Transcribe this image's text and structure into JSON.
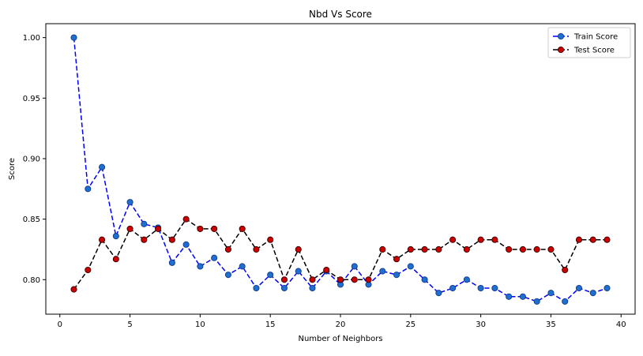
{
  "chart_data": {
    "type": "line",
    "title": "Nbd Vs Score",
    "xlabel": "Number of Neighbors",
    "ylabel": "Score",
    "xlim": [
      -1,
      41
    ],
    "ylim": [
      0.7715,
      1.0115
    ],
    "xticks": [
      0,
      5,
      10,
      15,
      20,
      25,
      30,
      35,
      40
    ],
    "yticks": [
      0.8,
      0.85,
      0.9,
      0.95,
      1.0
    ],
    "xtick_labels": [
      "0",
      "5",
      "10",
      "15",
      "20",
      "25",
      "30",
      "35",
      "40"
    ],
    "ytick_labels": [
      "0.80",
      "0.85",
      "0.90",
      "0.95",
      "1.00"
    ],
    "grid": false,
    "legend_position": "top-right",
    "x": [
      1,
      2,
      3,
      4,
      5,
      6,
      7,
      8,
      9,
      10,
      11,
      12,
      13,
      14,
      15,
      16,
      17,
      18,
      19,
      20,
      21,
      22,
      23,
      24,
      25,
      26,
      27,
      28,
      29,
      30,
      31,
      32,
      33,
      34,
      35,
      36,
      37,
      38,
      39
    ],
    "series": [
      {
        "name": "Train Score",
        "line_color": "#0000ff",
        "marker_face": "#1f6fd0",
        "marker_edge": "#123a8a",
        "values": [
          1.0,
          0.875,
          0.893,
          0.836,
          0.864,
          0.846,
          0.843,
          0.814,
          0.829,
          0.811,
          0.818,
          0.804,
          0.811,
          0.793,
          0.804,
          0.793,
          0.807,
          0.793,
          0.807,
          0.796,
          0.811,
          0.796,
          0.807,
          0.804,
          0.811,
          0.8,
          0.789,
          0.793,
          0.8,
          0.793,
          0.793,
          0.786,
          0.786,
          0.782,
          0.789,
          0.782,
          0.793,
          0.789,
          0.793
        ]
      },
      {
        "name": "Test Score",
        "line_color": "#000000",
        "marker_face": "#cc0000",
        "marker_edge": "#3a0000",
        "values": [
          0.792,
          0.808,
          0.833,
          0.817,
          0.842,
          0.833,
          0.842,
          0.833,
          0.85,
          0.842,
          0.842,
          0.825,
          0.842,
          0.825,
          0.833,
          0.8,
          0.825,
          0.8,
          0.808,
          0.8,
          0.8,
          0.8,
          0.825,
          0.817,
          0.825,
          0.825,
          0.825,
          0.833,
          0.825,
          0.833,
          0.833,
          0.825,
          0.825,
          0.825,
          0.825,
          0.808,
          0.833,
          0.833,
          0.833
        ]
      }
    ]
  }
}
